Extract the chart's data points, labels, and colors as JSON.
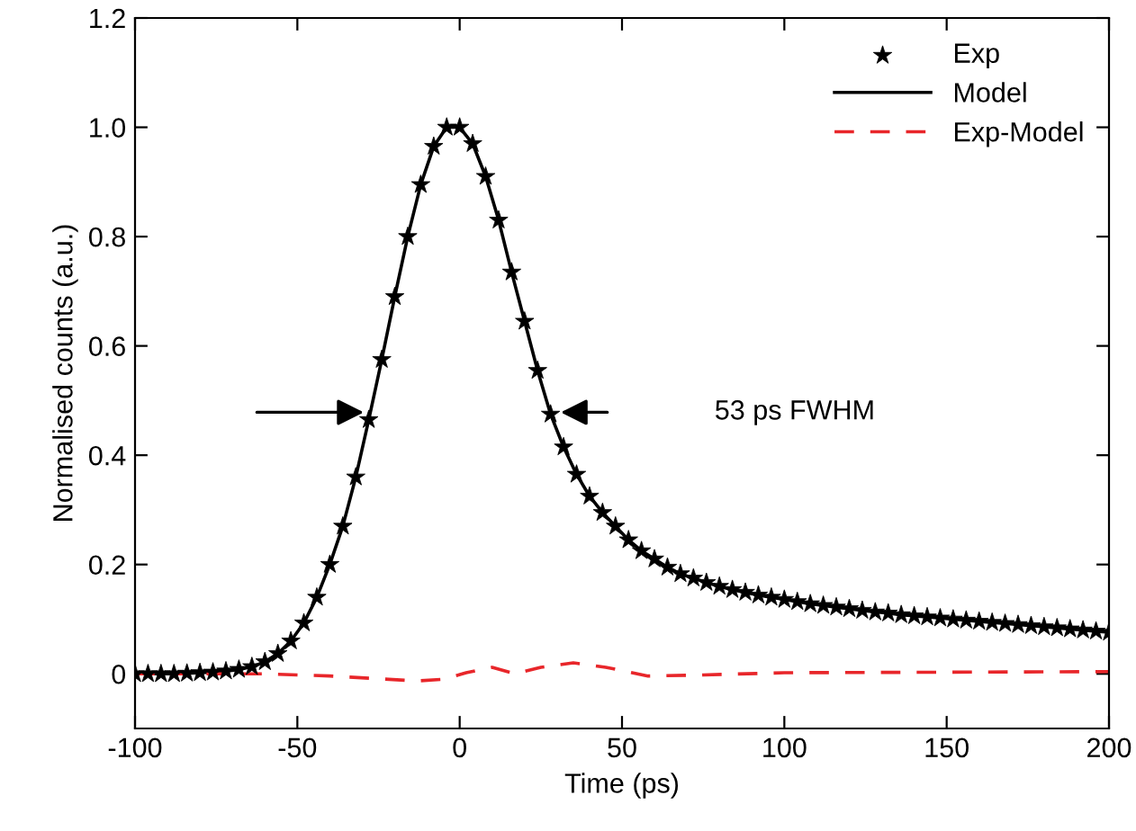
{
  "chart_data": {
    "type": "line",
    "xlabel": "Time (ps)",
    "ylabel": "Normalised counts (a.u.)",
    "xlim": [
      -100,
      200
    ],
    "xticks": [
      -100,
      -50,
      0,
      50,
      100,
      150,
      200
    ],
    "ylim": [
      -0.1,
      1.2
    ],
    "yticks": [
      {
        "value": 0,
        "label": "0"
      },
      0.2,
      0.4,
      0.6,
      0.8,
      {
        "value": 1.0,
        "label": "1.0"
      },
      1.2
    ],
    "x": [
      -100,
      -96,
      -92,
      -88,
      -84,
      -80,
      -76,
      -72,
      -68,
      -64,
      -60,
      -56,
      -52,
      -48,
      -44,
      -40,
      -36,
      -32,
      -28,
      -24,
      -20,
      -16,
      -12,
      -8,
      -4,
      0,
      4,
      8,
      12,
      16,
      20,
      24,
      28,
      32,
      36,
      40,
      44,
      48,
      52,
      56,
      60,
      64,
      68,
      72,
      76,
      80,
      84,
      88,
      92,
      96,
      100,
      104,
      108,
      112,
      116,
      120,
      124,
      128,
      132,
      136,
      140,
      144,
      148,
      152,
      156,
      160,
      164,
      168,
      172,
      176,
      180,
      184,
      188,
      192,
      196,
      200
    ],
    "series": [
      {
        "name": "Exp",
        "type": "scatter",
        "color": "#000000",
        "marker": "star",
        "values": [
          0,
          0,
          0,
          0,
          0.001,
          0.002,
          0.003,
          0.005,
          0.008,
          0.013,
          0.022,
          0.037,
          0.06,
          0.093,
          0.14,
          0.2,
          0.27,
          0.36,
          0.465,
          0.575,
          0.69,
          0.8,
          0.895,
          0.965,
          1.0,
          1.0,
          0.97,
          0.91,
          0.83,
          0.735,
          0.645,
          0.555,
          0.475,
          0.415,
          0.365,
          0.325,
          0.295,
          0.27,
          0.245,
          0.225,
          0.21,
          0.195,
          0.183,
          0.175,
          0.167,
          0.16,
          0.154,
          0.149,
          0.144,
          0.14,
          0.136,
          0.132,
          0.128,
          0.125,
          0.122,
          0.119,
          0.116,
          0.113,
          0.111,
          0.108,
          0.106,
          0.104,
          0.102,
          0.1,
          0.098,
          0.096,
          0.094,
          0.092,
          0.09,
          0.088,
          0.086,
          0.084,
          0.082,
          0.08,
          0.078,
          0.076
        ]
      },
      {
        "name": "Model",
        "color": "#000000",
        "line_style": "solid",
        "values": [
          0,
          0,
          0,
          0,
          0.001,
          0.002,
          0.003,
          0.005,
          0.008,
          0.013,
          0.022,
          0.037,
          0.06,
          0.093,
          0.14,
          0.2,
          0.27,
          0.36,
          0.465,
          0.575,
          0.69,
          0.8,
          0.895,
          0.965,
          1.0,
          1.0,
          0.97,
          0.91,
          0.83,
          0.735,
          0.645,
          0.555,
          0.475,
          0.415,
          0.365,
          0.325,
          0.295,
          0.27,
          0.245,
          0.225,
          0.21,
          0.195,
          0.183,
          0.175,
          0.167,
          0.16,
          0.154,
          0.149,
          0.144,
          0.14,
          0.136,
          0.132,
          0.128,
          0.125,
          0.122,
          0.119,
          0.116,
          0.113,
          0.111,
          0.108,
          0.106,
          0.104,
          0.102,
          0.1,
          0.098,
          0.096,
          0.094,
          0.092,
          0.09,
          0.088,
          0.086,
          0.084,
          0.082,
          0.08,
          0.078,
          0.076
        ]
      },
      {
        "name": "Exp-Model",
        "type": "line",
        "color": "#e8262a",
        "line_style": "dashed",
        "x": [
          -100,
          -60,
          -40,
          -25,
          -13,
          -5,
          2,
          10,
          17,
          25,
          35,
          45,
          58,
          75,
          100,
          150,
          200
        ],
        "values": [
          0,
          0,
          -0.004,
          -0.009,
          -0.013,
          -0.01,
          0.002,
          0.012,
          0,
          0.012,
          0.02,
          0.012,
          -0.004,
          -0.002,
          0.002,
          0.003,
          0.004
        ]
      }
    ],
    "annotations": [
      "53 ps FWHM"
    ],
    "legend": "top right",
    "grid": false
  }
}
